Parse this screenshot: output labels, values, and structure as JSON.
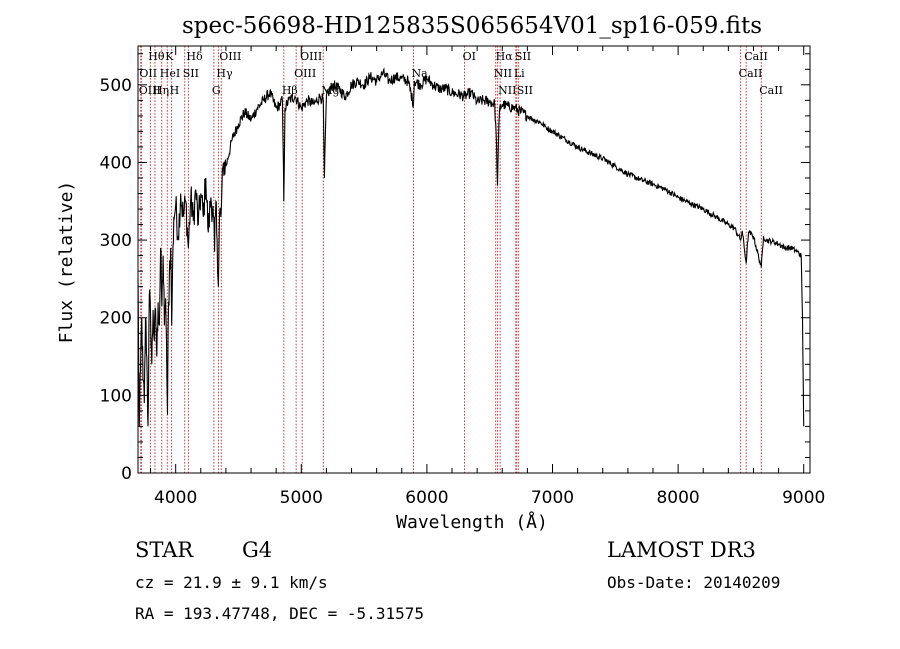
{
  "chart_data": {
    "type": "line",
    "title": "spec-56698-HD125835S065654V01_sp16-059.fits",
    "xlabel": "Wavelength (Å)",
    "ylabel": "Flux (relative)",
    "xlim": [
      3700,
      9050
    ],
    "ylim": [
      0,
      550
    ],
    "xticks": [
      4000,
      5000,
      6000,
      7000,
      8000,
      9000
    ],
    "yticks": [
      0,
      100,
      200,
      300,
      400,
      500
    ],
    "grid": false,
    "series": [
      {
        "name": "flux",
        "x": [
          3700,
          3710,
          3720,
          3730,
          3740,
          3750,
          3760,
          3770,
          3780,
          3790,
          3800,
          3810,
          3820,
          3830,
          3840,
          3850,
          3860,
          3870,
          3880,
          3890,
          3900,
          3910,
          3920,
          3930,
          3935,
          3940,
          3950,
          3960,
          3968,
          3975,
          3985,
          4000,
          4020,
          4040,
          4060,
          4080,
          4101,
          4120,
          4140,
          4160,
          4180,
          4200,
          4220,
          4240,
          4260,
          4280,
          4300,
          4310,
          4320,
          4330,
          4340,
          4350,
          4360,
          4380,
          4400,
          4450,
          4500,
          4550,
          4600,
          4650,
          4700,
          4750,
          4800,
          4830,
          4850,
          4861,
          4870,
          4900,
          4950,
          5000,
          5050,
          5100,
          5150,
          5175,
          5184,
          5200,
          5250,
          5300,
          5350,
          5400,
          5450,
          5500,
          5550,
          5600,
          5650,
          5700,
          5750,
          5800,
          5850,
          5893,
          5900,
          5950,
          6000,
          6050,
          6100,
          6150,
          6200,
          6250,
          6300,
          6350,
          6400,
          6450,
          6500,
          6540,
          6555,
          6562,
          6570,
          6580,
          6600,
          6650,
          6700,
          6750,
          6800,
          6850,
          6900,
          6950,
          7000,
          7100,
          7200,
          7300,
          7400,
          7500,
          7600,
          7700,
          7800,
          7900,
          8000,
          8100,
          8200,
          8300,
          8400,
          8450,
          8498,
          8510,
          8542,
          8560,
          8600,
          8662,
          8680,
          8700,
          8750,
          8800,
          8850,
          8900,
          8950,
          8980,
          8990,
          9000
        ],
        "y": [
          250,
          60,
          130,
          200,
          120,
          90,
          200,
          150,
          60,
          230,
          200,
          140,
          210,
          170,
          210,
          150,
          220,
          190,
          290,
          215,
          280,
          190,
          225,
          120,
          75,
          185,
          260,
          290,
          190,
          260,
          330,
          345,
          305,
          360,
          330,
          350,
          290,
          355,
          325,
          365,
          320,
          360,
          330,
          380,
          310,
          355,
          330,
          285,
          350,
          300,
          240,
          335,
          330,
          400,
          395,
          430,
          450,
          465,
          455,
          470,
          480,
          490,
          470,
          475,
          480,
          350,
          470,
          480,
          485,
          470,
          480,
          475,
          485,
          480,
          380,
          485,
          500,
          495,
          485,
          500,
          505,
          500,
          510,
          505,
          515,
          505,
          510,
          508,
          505,
          475,
          505,
          500,
          508,
          500,
          495,
          495,
          490,
          488,
          485,
          490,
          478,
          480,
          478,
          475,
          420,
          370,
          430,
          470,
          475,
          472,
          470,
          465,
          460,
          455,
          452,
          445,
          440,
          430,
          420,
          412,
          405,
          395,
          385,
          378,
          372,
          365,
          355,
          347,
          340,
          330,
          320,
          315,
          300,
          312,
          270,
          310,
          305,
          265,
          305,
          300,
          298,
          295,
          290,
          290,
          285,
          280,
          200,
          60
        ]
      }
    ],
    "spectral_lines": [
      {
        "label": "Hθ",
        "x": 3798,
        "row": 0
      },
      {
        "label": "K",
        "x": 3933,
        "row": 0
      },
      {
        "label": "Hδ",
        "x": 4101,
        "row": 0
      },
      {
        "label": "OIII",
        "x": 4363,
        "row": 0
      },
      {
        "label": "OIII",
        "x": 5007,
        "row": 0
      },
      {
        "label": "OI",
        "x": 6300,
        "row": 0
      },
      {
        "label": "Hα",
        "x": 6563,
        "row": 0
      },
      {
        "label": "SII",
        "x": 6716,
        "row": 0
      },
      {
        "label": "CaII",
        "x": 8542,
        "row": 0
      },
      {
        "label": "OII",
        "x": 3727,
        "row": 1
      },
      {
        "label": "HeI",
        "x": 3889,
        "row": 1
      },
      {
        "label": "SII",
        "x": 4072,
        "row": 1
      },
      {
        "label": "Hγ",
        "x": 4340,
        "row": 1
      },
      {
        "label": "OIII",
        "x": 4959,
        "row": 1
      },
      {
        "label": "Na",
        "x": 5893,
        "row": 1
      },
      {
        "label": "NII",
        "x": 6548,
        "row": 1
      },
      {
        "label": "Li",
        "x": 6708,
        "row": 1
      },
      {
        "label": "CaII",
        "x": 8498,
        "row": 1
      },
      {
        "label": "OIII",
        "x": 3722,
        "row": 2
      },
      {
        "label": "Hη",
        "x": 3835,
        "row": 2
      },
      {
        "label": "H",
        "x": 3968,
        "row": 2
      },
      {
        "label": "G",
        "x": 4304,
        "row": 2
      },
      {
        "label": "Hβ",
        "x": 4861,
        "row": 2
      },
      {
        "label": "Mg",
        "x": 5175,
        "row": 2
      },
      {
        "label": "NII",
        "x": 6583,
        "row": 2
      },
      {
        "label": "SII",
        "x": 6731,
        "row": 2
      },
      {
        "label": "CaII",
        "x": 8662,
        "row": 2
      }
    ]
  },
  "info": {
    "class": "STAR",
    "subclass": "G4",
    "survey": "LAMOST DR3",
    "cz": "cz = 21.9 ± 9.1 km/s",
    "obs_date": "Obs-Date: 20140209",
    "radec": "RA = 193.47748, DEC =  -5.31575"
  }
}
